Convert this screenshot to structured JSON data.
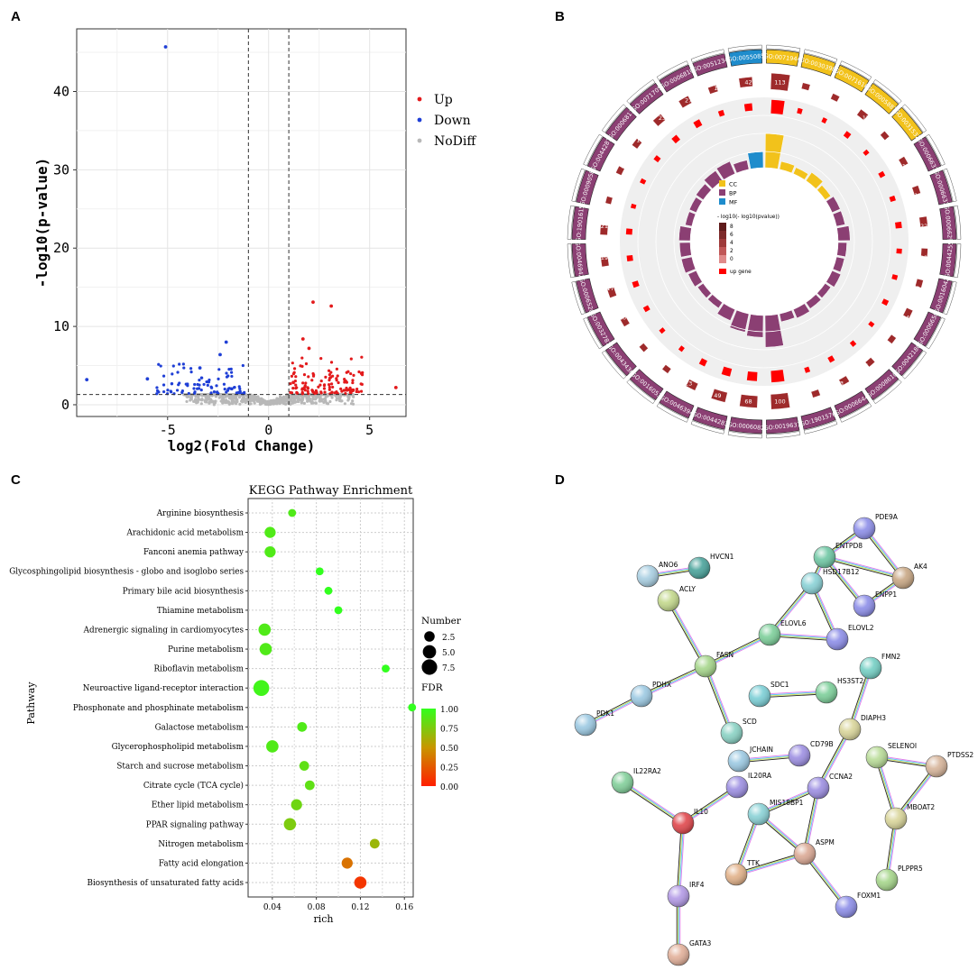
{
  "panels": {
    "a": "A",
    "b": "B",
    "c": "C",
    "d": "D"
  },
  "colors": {
    "up": "#e31a1c",
    "down": "#1f3fd6",
    "nodiff": "#b8b8b8",
    "cc": "#f2c21b",
    "bp": "#8b3f73",
    "mf": "#1e8ccc"
  },
  "chart_data": [
    {
      "id": "volcano",
      "type": "scatter",
      "title": "",
      "xlabel": "log2(Fold Change)",
      "ylabel": "-log10(p-value)",
      "xlim": [
        -9.5,
        6.8
      ],
      "ylim": [
        -1.5,
        48
      ],
      "xticks": [
        -5,
        0,
        5
      ],
      "yticks": [
        0,
        10,
        20,
        30,
        40
      ],
      "vlines": [
        -1,
        1
      ],
      "hline": 1.3,
      "legend": [
        {
          "name": "Up",
          "color": "#e31a1c"
        },
        {
          "name": "Down",
          "color": "#1f3fd6"
        },
        {
          "name": "NoDiff",
          "color": "#b8b8b8"
        }
      ],
      "highlight_points": [
        {
          "x": -5.1,
          "y": 45.7,
          "group": "Down"
        },
        {
          "x": -2.1,
          "y": 8.0,
          "group": "Down"
        },
        {
          "x": -2.4,
          "y": 6.4,
          "group": "Down"
        },
        {
          "x": -3.4,
          "y": 4.7,
          "group": "Down"
        },
        {
          "x": -9.0,
          "y": 3.2,
          "group": "Down"
        },
        {
          "x": -6.0,
          "y": 3.3,
          "group": "Down"
        },
        {
          "x": 2.2,
          "y": 13.1,
          "group": "Up"
        },
        {
          "x": 3.1,
          "y": 12.6,
          "group": "Up"
        },
        {
          "x": 1.7,
          "y": 8.4,
          "group": "Up"
        },
        {
          "x": 2.0,
          "y": 7.2,
          "group": "Up"
        },
        {
          "x": 4.6,
          "y": 4.0,
          "group": "Up"
        },
        {
          "x": 6.3,
          "y": 2.2,
          "group": "Up"
        }
      ]
    },
    {
      "id": "go-circle",
      "type": "circular",
      "terms": [
        "GO:0071944",
        "GO:0030398",
        "GO:0071616",
        "GO:0005887",
        "GO:0031532",
        "GO:0006631",
        "GO:0006633",
        "GO:0006629",
        "GO:0044255",
        "GO:0016042",
        "GO:0006650",
        "GO:0042180",
        "GO:0008610",
        "GO:0006644",
        "GO:1901576",
        "GO:0019637",
        "GO:0006082",
        "GO:0044283",
        "GO:0046394",
        "GO:0016053",
        "GO:0043436",
        "GO:0032787",
        "GO:0006520",
        "GO:0046942",
        "GO:1901615",
        "GO:0009058",
        "GO:0044281",
        "GO:0006811",
        "GO:0071705",
        "GO:0006810",
        "GO:0051234",
        "GO:0055085"
      ],
      "categories": [
        "CC",
        "CC",
        "CC",
        "CC",
        "CC",
        "BP",
        "BP",
        "BP",
        "BP",
        "BP",
        "BP",
        "BP",
        "BP",
        "BP",
        "BP",
        "BP",
        "BP",
        "BP",
        "BP",
        "BP",
        "BP",
        "BP",
        "BP",
        "BP",
        "BP",
        "BP",
        "BP",
        "BP",
        "BP",
        "BP",
        "BP",
        "MF"
      ],
      "bg_counts": [
        113,
        8,
        6,
        17,
        5,
        11,
        11,
        22,
        11,
        9,
        14,
        5,
        7,
        13,
        9,
        100,
        68,
        49,
        23,
        4,
        4,
        10,
        17,
        19,
        21,
        4,
        7,
        11,
        23,
        27,
        14,
        42
      ],
      "up_counts": [
        52,
        4,
        2,
        7,
        2,
        5,
        5,
        10,
        5,
        4,
        6,
        2,
        3,
        6,
        4,
        40,
        25,
        20,
        10,
        2,
        2,
        5,
        8,
        8,
        9,
        2,
        3,
        5,
        10,
        12,
        6,
        16
      ],
      "legend": {
        "cc": "CC",
        "bp": "BP",
        "mf": "MF",
        "scale_title": "- log10(- log10(pvalue))",
        "scale_ticks": [
          "8",
          "6",
          "4",
          "2",
          "0"
        ],
        "up": "up gene"
      }
    },
    {
      "id": "kegg",
      "type": "scatter",
      "title": "KEGG Pathway Enrichment",
      "xlabel": "rich",
      "ylabel": "Pathway",
      "xlim": [
        0.018,
        0.168
      ],
      "xticks": [
        0.04,
        0.08,
        0.12,
        0.16
      ],
      "xtick_labels": [
        "0.04",
        "0.08",
        "0.12",
        "0.16"
      ],
      "categories": [
        "Arginine biosynthesis",
        "Arachidonic acid metabolism",
        "Fanconi anemia pathway",
        "Glycosphingolipid biosynthesis - globo and isoglobo series",
        "Primary bile acid biosynthesis",
        "Thiamine metabolism",
        "Adrenergic signaling in cardiomyocytes",
        "Purine metabolism",
        "Riboflavin metabolism",
        "Neuroactive ligand-receptor interaction",
        "Phosphonate and phosphinate metabolism",
        "Galactose metabolism",
        "Glycerophospholipid metabolism",
        "Starch and sucrose metabolism",
        "Citrate cycle (TCA cycle)",
        "Ether lipid metabolism",
        "PPAR signaling pathway",
        "Nitrogen metabolism",
        "Fatty acid elongation",
        "Biosynthesis of unsaturated fatty acids"
      ],
      "rich": [
        0.058,
        0.038,
        0.038,
        0.083,
        0.091,
        0.1,
        0.033,
        0.034,
        0.143,
        0.03,
        0.167,
        0.067,
        0.04,
        0.069,
        0.074,
        0.062,
        0.056,
        0.133,
        0.108,
        0.12
      ],
      "number": [
        1,
        3,
        3,
        1,
        1,
        1,
        4,
        4,
        1,
        8,
        1,
        2,
        4,
        2,
        2,
        3,
        4,
        2,
        3,
        4
      ],
      "fdr": [
        0.9,
        0.9,
        0.9,
        1.0,
        1.0,
        1.0,
        0.9,
        0.9,
        1.0,
        0.95,
        1.0,
        0.9,
        0.9,
        0.85,
        0.85,
        0.8,
        0.75,
        0.65,
        0.35,
        0.1
      ],
      "size_legend": {
        "title": "Number",
        "labels": [
          "2.5",
          "5.0",
          "7.5"
        ],
        "values": [
          2.5,
          5.0,
          7.5
        ]
      },
      "color_legend": {
        "title": "FDR",
        "labels": [
          "1.00",
          "0.75",
          "0.50",
          "0.25",
          "0.00"
        ]
      }
    },
    {
      "id": "ppi-network",
      "type": "network",
      "nodes": [
        {
          "id": "ANO6",
          "color": "#a9cfe2"
        },
        {
          "id": "HVCN1",
          "color": "#4aa39b"
        },
        {
          "id": "PDE9A",
          "color": "#8d8ee8"
        },
        {
          "id": "ENTPD8",
          "color": "#6fc7a4"
        },
        {
          "id": "AK4",
          "color": "#c8a784"
        },
        {
          "id": "HSD17B12",
          "color": "#8ad2d6"
        },
        {
          "id": "ENPP1",
          "color": "#8d8ee8"
        },
        {
          "id": "ACLY",
          "color": "#c3d88c"
        },
        {
          "id": "ELOVL6",
          "color": "#7dcf9a"
        },
        {
          "id": "ELOVL2",
          "color": "#8d8ee8"
        },
        {
          "id": "FASN",
          "color": "#a6d68b"
        },
        {
          "id": "FMN2",
          "color": "#74cfc4"
        },
        {
          "id": "HS3ST2",
          "color": "#7dcf9a"
        },
        {
          "id": "SDC1",
          "color": "#7ccfd6"
        },
        {
          "id": "PDHX",
          "color": "#9cc9e2"
        },
        {
          "id": "PDK1",
          "color": "#9cc9e2"
        },
        {
          "id": "SCD",
          "color": "#8ad2c4"
        },
        {
          "id": "DIAPH3",
          "color": "#d9d59a"
        },
        {
          "id": "JCHAIN",
          "color": "#9cc9e2"
        },
        {
          "id": "CD79B",
          "color": "#9d8fe2"
        },
        {
          "id": "SELENOI",
          "color": "#b9dc98"
        },
        {
          "id": "PTDSS2",
          "color": "#d6b49a"
        },
        {
          "id": "IL22RA2",
          "color": "#82cf9a"
        },
        {
          "id": "IL20RA",
          "color": "#9d8fe2"
        },
        {
          "id": "CCNA2",
          "color": "#9d8fe2"
        },
        {
          "id": "MBOAT2",
          "color": "#d9d59a"
        },
        {
          "id": "MIS18BP1",
          "color": "#8ad2d6"
        },
        {
          "id": "IL10",
          "color": "#e0474c"
        },
        {
          "id": "ASPM",
          "color": "#dba995"
        },
        {
          "id": "TTK",
          "color": "#e2b28a"
        },
        {
          "id": "PLPPR5",
          "color": "#a6d68b"
        },
        {
          "id": "IRF4",
          "color": "#b39ae6"
        },
        {
          "id": "FOXM1",
          "color": "#8d8ee8"
        },
        {
          "id": "GATA3",
          "color": "#e2b09a"
        }
      ],
      "edges": [
        [
          "ANO6",
          "HVCN1"
        ],
        [
          "PDE9A",
          "ENTPD8"
        ],
        [
          "PDE9A",
          "AK4"
        ],
        [
          "ENTPD8",
          "AK4"
        ],
        [
          "AK4",
          "ENPP1"
        ],
        [
          "ENTPD8",
          "ENPP1"
        ],
        [
          "ENTPD8",
          "HSD17B12"
        ],
        [
          "HSD17B12",
          "ELOVL6"
        ],
        [
          "HSD17B12",
          "ELOVL2"
        ],
        [
          "ELOVL6",
          "ELOVL2"
        ],
        [
          "ELOVL6",
          "FASN"
        ],
        [
          "ACLY",
          "FASN"
        ],
        [
          "FASN",
          "PDHX"
        ],
        [
          "FASN",
          "SCD"
        ],
        [
          "PDHX",
          "PDK1"
        ],
        [
          "SDC1",
          "HS3ST2"
        ],
        [
          "FMN2",
          "DIAPH3"
        ],
        [
          "DIAPH3",
          "CCNA2"
        ],
        [
          "JCHAIN",
          "CD79B"
        ],
        [
          "SELENOI",
          "PTDSS2"
        ],
        [
          "SELENOI",
          "MBOAT2"
        ],
        [
          "PTDSS2",
          "MBOAT2"
        ],
        [
          "MBOAT2",
          "PLPPR5"
        ],
        [
          "IL22RA2",
          "IL10"
        ],
        [
          "IL20RA",
          "IL10"
        ],
        [
          "IL10",
          "IRF4"
        ],
        [
          "IRF4",
          "GATA3"
        ],
        [
          "MIS18BP1",
          "CCNA2"
        ],
        [
          "MIS18BP1",
          "TTK"
        ],
        [
          "MIS18BP1",
          "ASPM"
        ],
        [
          "CCNA2",
          "ASPM"
        ],
        [
          "ASPM",
          "TTK"
        ],
        [
          "ASPM",
          "FOXM1"
        ]
      ]
    }
  ]
}
